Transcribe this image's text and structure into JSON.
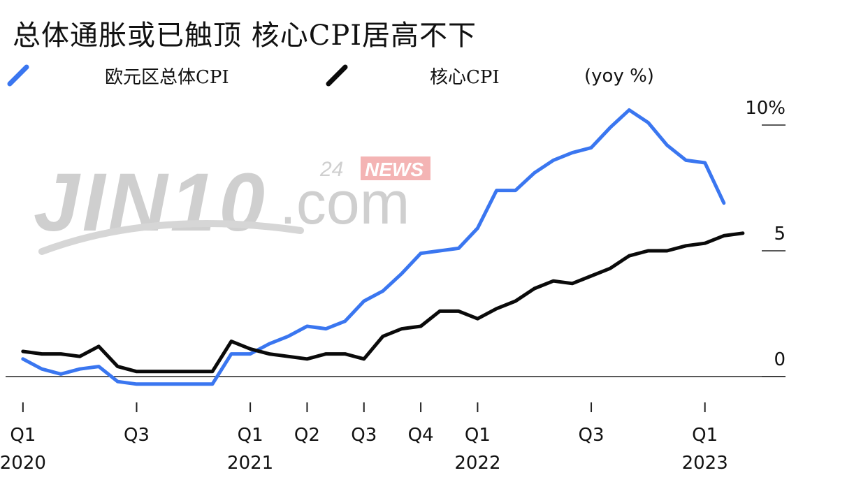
{
  "header": {
    "title": "总体通胀或已触顶 核心CPI居高不下",
    "unit": "(yoy %)"
  },
  "watermark": {
    "brand": "JIN10",
    "domain": ".com",
    "tag_num": "24",
    "tag_word": "NEWS"
  },
  "colors": {
    "headline": "#3a76f0",
    "core": "#0a0a0a",
    "axis": "#222222",
    "watermark": "#c9c9c9",
    "watermark_tag": "#f2a3a3"
  },
  "chart_data": {
    "type": "line",
    "title": "总体通胀或已触顶 核心CPI居高不下",
    "ylabel": "(yoy %)",
    "ylim": [
      -1,
      11
    ],
    "y_ticks": [
      {
        "value": 10,
        "label": "10%"
      },
      {
        "value": 5,
        "label": "5"
      },
      {
        "value": 0,
        "label": "0"
      }
    ],
    "x_ticks": [
      {
        "month": 1,
        "quarter": "Q1",
        "year": "2020"
      },
      {
        "month": 7,
        "quarter": "Q3",
        "year": ""
      },
      {
        "month": 13,
        "quarter": "Q1",
        "year": "2021"
      },
      {
        "month": 16,
        "quarter": "Q2",
        "year": ""
      },
      {
        "month": 19,
        "quarter": "Q3",
        "year": ""
      },
      {
        "month": 22,
        "quarter": "Q4",
        "year": ""
      },
      {
        "month": 25,
        "quarter": "Q1",
        "year": "2022"
      },
      {
        "month": 31,
        "quarter": "Q3",
        "year": ""
      },
      {
        "month": 37,
        "quarter": "Q1",
        "year": "2023"
      }
    ],
    "x_range": [
      0.6,
      40
    ],
    "series": [
      {
        "name": "欧元区总体CPI",
        "color": "#3a76f0",
        "values": [
          0.7,
          0.3,
          0.1,
          0.3,
          0.4,
          -0.2,
          -0.3,
          -0.3,
          -0.3,
          -0.3,
          -0.3,
          0.9,
          0.9,
          1.3,
          1.6,
          2.0,
          1.9,
          2.2,
          3.0,
          3.4,
          4.1,
          4.9,
          5.0,
          5.1,
          5.9,
          7.4,
          7.4,
          8.1,
          8.6,
          8.9,
          9.1,
          9.9,
          10.6,
          10.1,
          9.2,
          8.6,
          8.5,
          6.9
        ],
        "start_month": 1
      },
      {
        "name": "核心CPI",
        "color": "#0a0a0a",
        "values": [
          1.0,
          0.9,
          0.9,
          0.8,
          1.2,
          0.4,
          0.2,
          0.2,
          0.2,
          0.2,
          0.2,
          1.4,
          1.1,
          0.9,
          0.8,
          0.7,
          0.9,
          0.9,
          0.7,
          1.6,
          1.9,
          2.0,
          2.6,
          2.6,
          2.3,
          2.7,
          3.0,
          3.5,
          3.8,
          3.7,
          4.0,
          4.3,
          4.8,
          5.0,
          5.0,
          5.2,
          5.3,
          5.6,
          5.7
        ],
        "start_month": 1
      }
    ]
  }
}
